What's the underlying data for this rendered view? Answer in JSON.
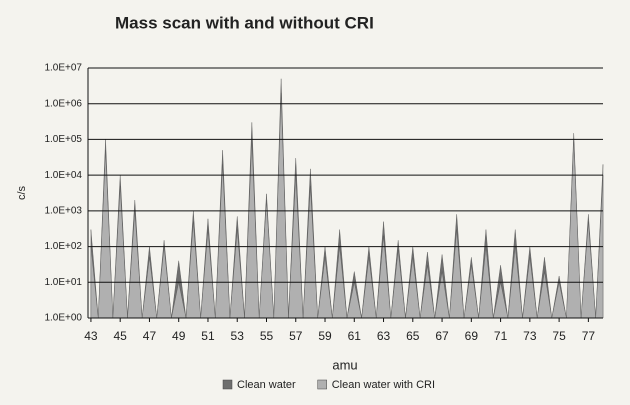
{
  "chart_data": {
    "type": "area",
    "title": "Mass scan with and without CRI",
    "xlabel": "amu",
    "ylabel": "c/s",
    "log_y": true,
    "grid": true,
    "legend": "bottom",
    "x": [
      43,
      43.5,
      44,
      44.5,
      45,
      45.5,
      46,
      46.5,
      47,
      47.5,
      48,
      48.5,
      49,
      49.5,
      50,
      50.5,
      51,
      51.5,
      52,
      52.5,
      53,
      53.5,
      54,
      54.5,
      55,
      55.5,
      56,
      56.5,
      57,
      57.5,
      58,
      58.5,
      59,
      59.5,
      60,
      60.5,
      61,
      61.5,
      62,
      62.5,
      63,
      63.5,
      64,
      64.5,
      65,
      65.5,
      66,
      66.5,
      67,
      67.5,
      68,
      68.5,
      69,
      69.5,
      70,
      70.5,
      71,
      71.5,
      72,
      72.5,
      73,
      73.5,
      74,
      74.5,
      75,
      75.5,
      76,
      76.5,
      77,
      77.5,
      78
    ],
    "series": [
      {
        "name": "Clean water",
        "color": "#6e6e6e",
        "values": [
          300,
          1,
          100000,
          1,
          10000,
          1,
          2000,
          1,
          100,
          1,
          150,
          1,
          40,
          1,
          1000,
          1,
          600,
          1,
          50000,
          1,
          700,
          1,
          300000,
          1,
          3000,
          1,
          5000000,
          1,
          30000,
          1,
          15000,
          1,
          100,
          1,
          300,
          1,
          20,
          1,
          100,
          1,
          500,
          1,
          150,
          1,
          100,
          1,
          70,
          1,
          60,
          1,
          800,
          1,
          50,
          1,
          300,
          1,
          30,
          1,
          300,
          1,
          100,
          1,
          50,
          1,
          15,
          1,
          150000,
          1,
          800,
          1,
          20000
        ]
      },
      {
        "name": "Clean water with CRI",
        "color": "#b0b0b0",
        "values": [
          100,
          1,
          50000,
          1,
          5000,
          1,
          1000,
          1,
          50,
          1,
          100,
          1,
          10,
          1,
          500,
          1,
          300,
          1,
          20000,
          1,
          300,
          1,
          100000,
          1,
          2000,
          1,
          2000000,
          1,
          10000,
          1,
          5000,
          1,
          50,
          1,
          100,
          1,
          10,
          1,
          50,
          1,
          200,
          1,
          80,
          1,
          50,
          1,
          30,
          1,
          20,
          1,
          300,
          1,
          30,
          1,
          100,
          1,
          10,
          1,
          100,
          1,
          50,
          1,
          20,
          1,
          10,
          1,
          100000,
          1,
          500,
          1,
          10000
        ]
      }
    ],
    "xlim": [
      42.8,
      78
    ],
    "xticks": [
      43,
      45,
      47,
      49,
      51,
      53,
      55,
      57,
      59,
      61,
      63,
      65,
      67,
      69,
      71,
      73,
      75,
      77
    ],
    "ylim": [
      1,
      10000000
    ],
    "yticks": [
      {
        "value": 1,
        "label": "1.0E+00"
      },
      {
        "value": 10,
        "label": "1.0E+01"
      },
      {
        "value": 100,
        "label": "1.0E+02"
      },
      {
        "value": 1000,
        "label": "1.0E+03"
      },
      {
        "value": 10000,
        "label": "1.0E+04"
      },
      {
        "value": 100000,
        "label": "1.0E+05"
      },
      {
        "value": 1000000,
        "label": "1.0E+06"
      },
      {
        "value": 10000000,
        "label": "1.0E+07"
      }
    ]
  }
}
